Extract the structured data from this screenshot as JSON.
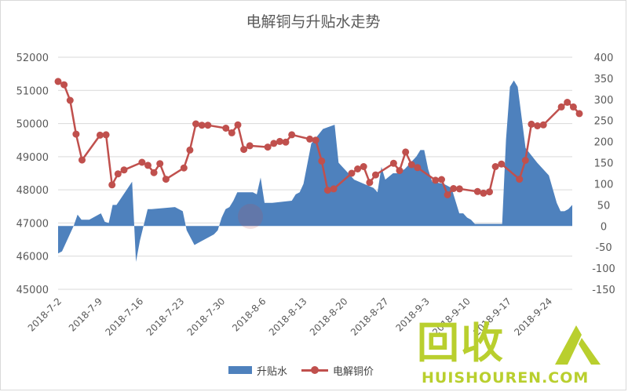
{
  "chart_data": {
    "type": "line",
    "title": "电解铜与升贴水走势",
    "left_axis": {
      "min": 45000,
      "max": 52000,
      "step": 1000,
      "ticks": [
        "45000",
        "46000",
        "47000",
        "48000",
        "49000",
        "50000",
        "51000",
        "52000"
      ]
    },
    "right_axis": {
      "min": -150,
      "max": 400,
      "step": 50,
      "ticks": [
        "-150",
        "-100",
        "-50",
        "0",
        "50",
        "100",
        "150",
        "200",
        "250",
        "300",
        "350",
        "400"
      ]
    },
    "x_tick_labels": [
      "2018-7-2",
      "2018-7-9",
      "2018-7-16",
      "2018-7-23",
      "2018-7-30",
      "2018-8-6",
      "2018-8-13",
      "2018-8-20",
      "2018-8-27",
      "2018-9-3",
      "2018-9-10",
      "2018-9-17",
      "2018-9-24"
    ],
    "x_range_days": [
      0,
      90
    ],
    "grid": true,
    "legend_position": "bottom",
    "series": [
      {
        "name": "升贴水",
        "kind": "area",
        "axis": "right",
        "color": "#4e81bd",
        "points": [
          [
            0,
            -65
          ],
          [
            1,
            -60
          ],
          [
            4,
            0
          ],
          [
            5,
            27
          ],
          [
            6,
            15
          ],
          [
            8,
            15
          ],
          [
            11,
            30
          ],
          [
            12,
            10
          ],
          [
            13,
            7
          ],
          [
            14,
            50
          ],
          [
            15,
            50
          ],
          [
            19,
            105
          ],
          [
            20,
            -85
          ],
          [
            21,
            -35
          ],
          [
            23,
            40
          ],
          [
            24,
            40
          ],
          [
            30,
            45
          ],
          [
            31,
            40
          ],
          [
            32,
            35
          ],
          [
            33,
            -10
          ],
          [
            35,
            -45
          ],
          [
            36,
            -40
          ],
          [
            40,
            -20
          ],
          [
            41,
            -10
          ],
          [
            42,
            20
          ],
          [
            43,
            40
          ],
          [
            44,
            45
          ],
          [
            45,
            60
          ],
          [
            46,
            80
          ],
          [
            47,
            80
          ],
          [
            50,
            80
          ],
          [
            51,
            75
          ],
          [
            52,
            115
          ],
          [
            53,
            55
          ],
          [
            54,
            55
          ],
          [
            55,
            55
          ],
          [
            60,
            60
          ],
          [
            61,
            75
          ],
          [
            62,
            80
          ],
          [
            63,
            100
          ],
          [
            65,
            195
          ],
          [
            68,
            230
          ],
          [
            71,
            240
          ],
          [
            72,
            150
          ],
          [
            73,
            140
          ],
          [
            74,
            130
          ],
          [
            75,
            120
          ],
          [
            76,
            110
          ],
          [
            81,
            90
          ],
          [
            82,
            80
          ],
          [
            83,
            140
          ],
          [
            84,
            110
          ],
          [
            86,
            125
          ],
          [
            87,
            125
          ],
          [
            89,
            135
          ],
          [
            92,
            165
          ],
          [
            93,
            180
          ],
          [
            94,
            180
          ],
          [
            95,
            135
          ],
          [
            96,
            105
          ],
          [
            99,
            100
          ],
          [
            101,
            90
          ],
          [
            103,
            30
          ],
          [
            104,
            30
          ],
          [
            105,
            20
          ],
          [
            106,
            15
          ],
          [
            107,
            5
          ],
          [
            108,
            5
          ],
          [
            109,
            5
          ],
          [
            110,
            5
          ],
          [
            114,
            5
          ],
          [
            115,
            205
          ],
          [
            116,
            330
          ],
          [
            117,
            345
          ],
          [
            118,
            330
          ],
          [
            120,
            185
          ],
          [
            123,
            150
          ],
          [
            126,
            120
          ],
          [
            128,
            55
          ],
          [
            129,
            35
          ],
          [
            130,
            35
          ],
          [
            131,
            40
          ],
          [
            132,
            50
          ]
        ]
      },
      {
        "name": "电解铜价",
        "kind": "line-marker",
        "axis": "left",
        "color": "#c0504d",
        "points": [
          [
            0,
            51270
          ],
          [
            1,
            51170
          ],
          [
            2,
            50700
          ],
          [
            3,
            49680
          ],
          [
            4,
            48900
          ],
          [
            7,
            49650
          ],
          [
            8,
            49660
          ],
          [
            9,
            48150
          ],
          [
            10,
            48480
          ],
          [
            11,
            48600
          ],
          [
            14,
            48830
          ],
          [
            15,
            48740
          ],
          [
            16,
            48520
          ],
          [
            17,
            48790
          ],
          [
            18,
            48320
          ],
          [
            21,
            48660
          ],
          [
            22,
            49200
          ],
          [
            23,
            49990
          ],
          [
            24,
            49950
          ],
          [
            25,
            49950
          ],
          [
            28,
            49860
          ],
          [
            29,
            49720
          ],
          [
            30,
            49960
          ],
          [
            31,
            49220
          ],
          [
            32,
            49330
          ],
          [
            35,
            49290
          ],
          [
            36,
            49400
          ],
          [
            37,
            49460
          ],
          [
            38,
            49440
          ],
          [
            39,
            49660
          ],
          [
            42,
            49530
          ],
          [
            43,
            49500
          ],
          [
            44,
            48870
          ],
          [
            45,
            47990
          ],
          [
            46,
            48030
          ],
          [
            49,
            48500
          ],
          [
            50,
            48630
          ],
          [
            51,
            48700
          ],
          [
            52,
            48220
          ],
          [
            53,
            48450
          ],
          [
            56,
            48800
          ],
          [
            57,
            48580
          ],
          [
            58,
            49140
          ],
          [
            59,
            48760
          ],
          [
            60,
            48670
          ],
          [
            63,
            48290
          ],
          [
            64,
            48310
          ],
          [
            65,
            47850
          ],
          [
            66,
            48040
          ],
          [
            67,
            48030
          ],
          [
            70,
            47950
          ],
          [
            71,
            47900
          ],
          [
            72,
            47940
          ],
          [
            73,
            48700
          ],
          [
            74,
            48780
          ],
          [
            77,
            48320
          ],
          [
            78,
            48890
          ],
          [
            79,
            49980
          ],
          [
            80,
            49930
          ],
          [
            81,
            49960
          ],
          [
            84,
            50500
          ],
          [
            85,
            50640
          ],
          [
            86,
            50500
          ],
          [
            87,
            50300
          ]
        ]
      }
    ]
  }
}
